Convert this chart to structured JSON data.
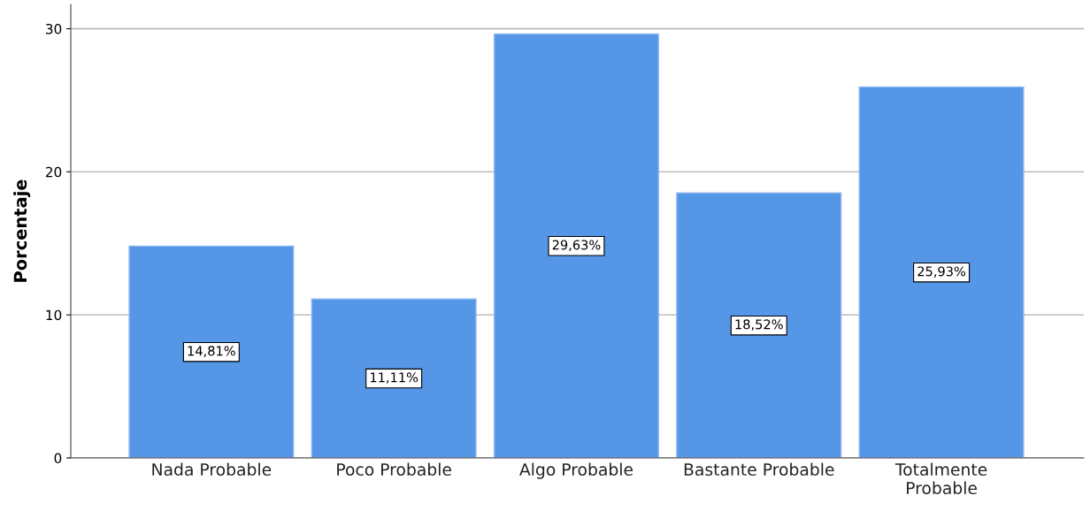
{
  "chart_data": {
    "type": "bar",
    "ylabel": "Porcentaje",
    "categories": [
      "Nada Probable",
      "Poco Probable",
      "Algo Probable",
      "Bastante Probable",
      "Totalmente\nProbable"
    ],
    "values": [
      14.81,
      11.11,
      29.63,
      18.52,
      25.93
    ],
    "value_labels": [
      "14,81%",
      "11,11%",
      "29,63%",
      "18,52%",
      "25,93%"
    ],
    "color": "#5596e6",
    "ylim": [
      0,
      31.7
    ],
    "yticks": [
      0,
      10,
      20,
      30
    ],
    "grid": "y",
    "legend": false
  }
}
